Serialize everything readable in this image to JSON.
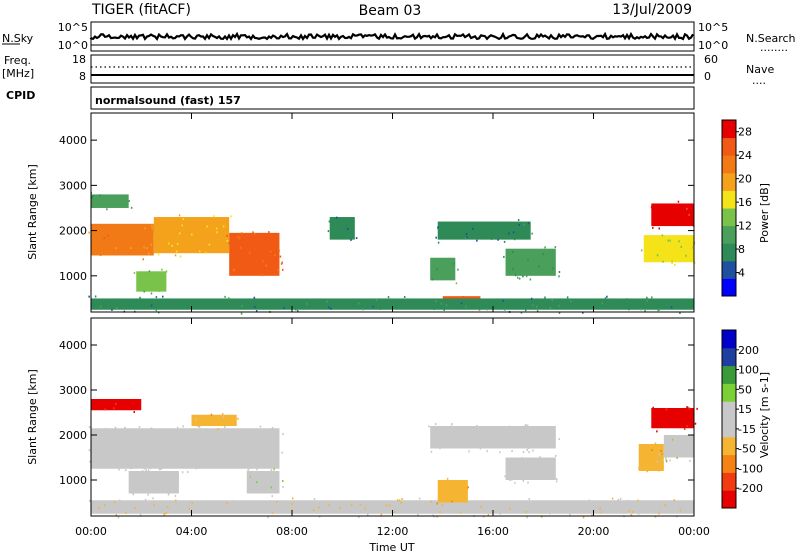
{
  "header": {
    "radar": "TIGER (fitACF)",
    "beam": "Beam 03",
    "date": "13/Jul/2009"
  },
  "nsky_panel": {
    "left_label": "N.Sky",
    "left_ticks": [
      "10^5",
      "10^0"
    ],
    "right_ticks": [
      "10^5",
      "10^0"
    ],
    "right_label": "N.Search",
    "right_dots": "........"
  },
  "freq_panel": {
    "left_label_1": "Freq.",
    "left_label_2": "[MHz]",
    "left_ticks": [
      "18",
      "8"
    ],
    "right_ticks": [
      "60",
      "0"
    ],
    "right_label": "Nave",
    "right_dots": "....",
    "cpid_label": "CPID"
  },
  "cpid_text": "normalsound (fast) 157",
  "xaxis": {
    "label": "Time UT",
    "ticks": [
      "00:00",
      "04:00",
      "08:00",
      "12:00",
      "16:00",
      "20:00",
      "00:00"
    ]
  },
  "colors": {
    "power": [
      "#0000ff",
      "#1f4fa0",
      "#2e8b57",
      "#4aa05a",
      "#7ac34a",
      "#f5e31a",
      "#f4a21c",
      "#f27a16",
      "#f05a14",
      "#e60000"
    ],
    "velocity": [
      "#e60000",
      "#f03c10",
      "#f58214",
      "#f5b432",
      "#c8c8c8",
      "#c8c8c8",
      "#7ad034",
      "#3a9a3a",
      "#1f3fa0",
      "#0000c8"
    ]
  },
  "chart_data": [
    {
      "type": "heatmap",
      "title": "Power",
      "ylabel": "Slant Range [km]",
      "xlabel": "",
      "xlim": [
        "00:00",
        "24:00"
      ],
      "ylim": [
        200,
        4600
      ],
      "yticks": [
        1000,
        2000,
        3000,
        4000
      ],
      "colorbar": {
        "label": "Power [dB]",
        "ticks": [
          4,
          8,
          12,
          16,
          20,
          24,
          28
        ],
        "range": [
          0,
          30
        ]
      },
      "regions": [
        {
          "t0": 0.0,
          "t1": 2.5,
          "r0": 1450,
          "r1": 2150,
          "value": 22
        },
        {
          "t0": 2.5,
          "t1": 5.5,
          "r0": 1500,
          "r1": 2300,
          "value": 18
        },
        {
          "t0": 5.5,
          "t1": 7.5,
          "r0": 1000,
          "r1": 1950,
          "value": 24
        },
        {
          "t0": 0.0,
          "t1": 1.5,
          "r0": 2500,
          "r1": 2800,
          "value": 10
        },
        {
          "t0": 1.8,
          "t1": 3.0,
          "r0": 650,
          "r1": 1100,
          "value": 14
        },
        {
          "t0": 9.5,
          "t1": 10.5,
          "r0": 1800,
          "r1": 2300,
          "value": 6
        },
        {
          "t0": 13.5,
          "t1": 14.5,
          "r0": 900,
          "r1": 1400,
          "value": 10
        },
        {
          "t0": 13.8,
          "t1": 17.5,
          "r0": 1800,
          "r1": 2200,
          "value": 7
        },
        {
          "t0": 16.5,
          "t1": 18.5,
          "r0": 1000,
          "r1": 1600,
          "value": 9
        },
        {
          "t0": 14.0,
          "t1": 15.5,
          "r0": 300,
          "r1": 550,
          "value": 24
        },
        {
          "t0": 0.0,
          "t1": 24.0,
          "r0": 250,
          "r1": 500,
          "value": 8
        },
        {
          "t0": 22.3,
          "t1": 24.0,
          "r0": 2100,
          "r1": 2600,
          "value": 28
        },
        {
          "t0": 22.0,
          "t1": 24.0,
          "r0": 1300,
          "r1": 1900,
          "value": 16
        }
      ]
    },
    {
      "type": "heatmap",
      "title": "Velocity",
      "ylabel": "Slant Range [km]",
      "xlabel": "Time UT",
      "xlim": [
        "00:00",
        "24:00"
      ],
      "ylim": [
        200,
        4600
      ],
      "yticks": [
        1000,
        2000,
        3000,
        4000
      ],
      "colorbar": {
        "label": "Velocity [m s-1]",
        "ticks": [
          -200,
          -100,
          -50,
          -15,
          15,
          50,
          100,
          200
        ],
        "range": [
          -250,
          250
        ]
      },
      "regions": [
        {
          "t0": 0.0,
          "t1": 2.0,
          "r0": 2550,
          "r1": 2800,
          "value": -220
        },
        {
          "t0": 0.0,
          "t1": 7.5,
          "r0": 1250,
          "r1": 2150,
          "value": 0
        },
        {
          "t0": 4.0,
          "t1": 5.8,
          "r0": 2200,
          "r1": 2450,
          "value": -70
        },
        {
          "t0": 1.5,
          "t1": 3.5,
          "r0": 700,
          "r1": 1200,
          "value": 0
        },
        {
          "t0": 6.2,
          "t1": 7.5,
          "r0": 700,
          "r1": 1200,
          "value": 30
        },
        {
          "t0": 0.0,
          "t1": 24.0,
          "r0": 250,
          "r1": 550,
          "value": -40
        },
        {
          "t0": 13.5,
          "t1": 18.5,
          "r0": 1700,
          "r1": 2200,
          "value": 0
        },
        {
          "t0": 16.5,
          "t1": 18.5,
          "r0": 1000,
          "r1": 1500,
          "value": 0
        },
        {
          "t0": 13.8,
          "t1": 15.0,
          "r0": 500,
          "r1": 1000,
          "value": -80
        },
        {
          "t0": 22.3,
          "t1": 24.0,
          "r0": 2150,
          "r1": 2600,
          "value": -220
        },
        {
          "t0": 21.8,
          "t1": 22.8,
          "r0": 1200,
          "r1": 1800,
          "value": -90
        },
        {
          "t0": 22.8,
          "t1": 24.0,
          "r0": 1500,
          "r1": 2000,
          "value": 20
        }
      ]
    }
  ]
}
